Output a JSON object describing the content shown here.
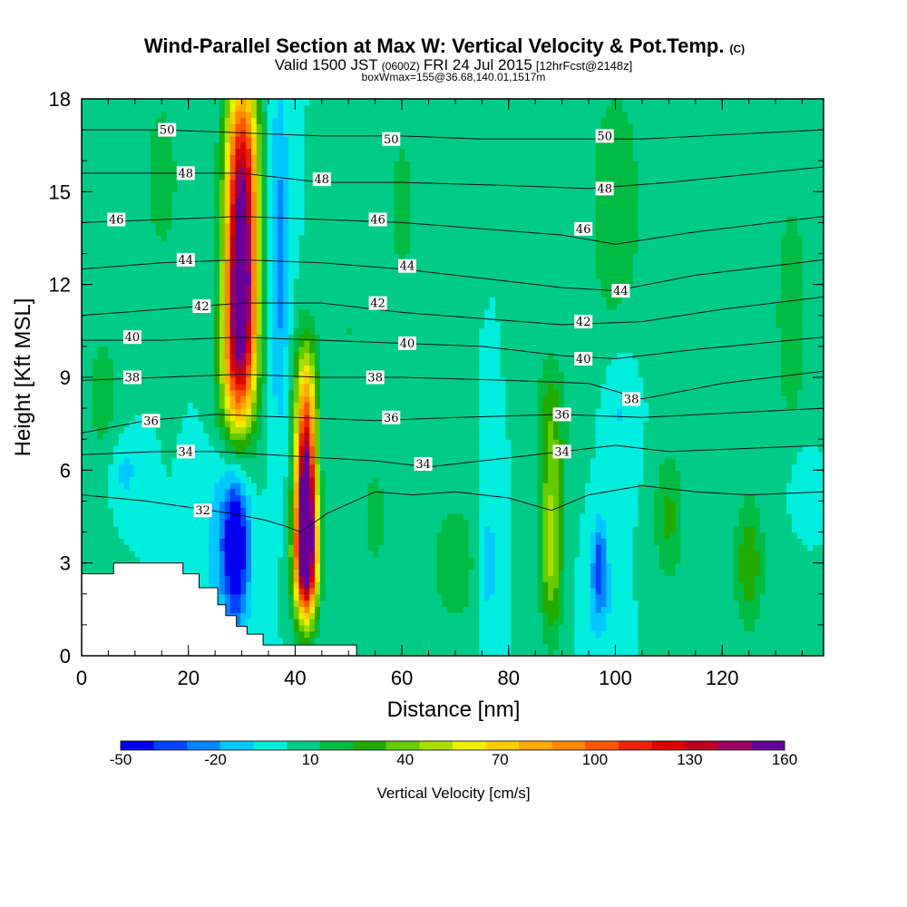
{
  "chart_data": {
    "type": "heatmap",
    "title": "Wind-Parallel Section at Max W: Vertical Velocity & Pot.Temp.",
    "title_mark": "(C)",
    "subtitle_parts": [
      "Valid 1500 JST",
      "(0600Z)",
      "FRI 24 Jul 2015",
      "[12hrFcst@2148z]"
    ],
    "subtitle2": "boxWmax=155@36.68,140.01,1517m",
    "xlabel": "Distance [nm]",
    "ylabel": "Height [Kft MSL]",
    "xlim": [
      0,
      139
    ],
    "ylim": [
      0,
      18
    ],
    "x_ticks": [
      "0",
      "20",
      "40",
      "60",
      "80",
      "100",
      "120"
    ],
    "y_ticks": [
      "0",
      "3",
      "6",
      "9",
      "12",
      "15",
      "18"
    ],
    "grid": false,
    "colorbar": {
      "label": "Vertical Velocity [cm/s]",
      "min": -50,
      "max": 160,
      "step": 10,
      "tick_labels": [
        "-50",
        "-20",
        "10",
        "40",
        "70",
        "100",
        "130",
        "160"
      ],
      "colors": [
        "#0000ee",
        "#0044ff",
        "#0088ff",
        "#00c8ff",
        "#00eedd",
        "#00cc88",
        "#00bb44",
        "#22aa00",
        "#66cc00",
        "#aadd00",
        "#eeee00",
        "#ffcc00",
        "#ffaa00",
        "#ff8800",
        "#ff5500",
        "#ee2200",
        "#dd0000",
        "#bb0022",
        "#990066",
        "#660099"
      ],
      "placement": "bottom"
    },
    "background_value": 0,
    "velocity_features": [
      {
        "x": 30,
        "y": 16.5,
        "sx": 2.2,
        "sy": 2.0,
        "value": 70
      },
      {
        "x": 30,
        "y": 13.0,
        "sx": 2.0,
        "sy": 2.5,
        "value": 120
      },
      {
        "x": 29.5,
        "y": 10.5,
        "sx": 2.2,
        "sy": 2.0,
        "value": 80
      },
      {
        "x": 29,
        "y": 8.5,
        "sx": 2.5,
        "sy": 1.5,
        "value": 30
      },
      {
        "x": 42,
        "y": 8.5,
        "sx": 1.6,
        "sy": 1.5,
        "value": 45
      },
      {
        "x": 42,
        "y": 5.0,
        "sx": 1.3,
        "sy": 2.0,
        "value": 160
      },
      {
        "x": 42,
        "y": 3.0,
        "sx": 1.6,
        "sy": 1.3,
        "value": 90
      },
      {
        "x": 29,
        "y": 3.5,
        "sx": 1.7,
        "sy": 1.7,
        "value": -55
      },
      {
        "x": 26,
        "y": 3.8,
        "sx": 2.5,
        "sy": 2.0,
        "value": -15
      },
      {
        "x": 37,
        "y": 13.0,
        "sx": 1.3,
        "sy": 4.0,
        "value": -25
      },
      {
        "x": 88,
        "y": 3.5,
        "sx": 1.5,
        "sy": 2.0,
        "value": 45
      },
      {
        "x": 88,
        "y": 7.5,
        "sx": 2.0,
        "sy": 1.6,
        "value": 25
      },
      {
        "x": 70,
        "y": 3.0,
        "sx": 3.5,
        "sy": 1.5,
        "value": 18
      },
      {
        "x": 76,
        "y": 3.0,
        "sx": 1.5,
        "sy": 1.5,
        "value": -18
      },
      {
        "x": 97,
        "y": 3.0,
        "sx": 1.0,
        "sy": 1.0,
        "value": -35
      },
      {
        "x": 97,
        "y": 1.5,
        "sx": 2.0,
        "sy": 1.0,
        "value": -12
      },
      {
        "x": 110,
        "y": 4.5,
        "sx": 2.0,
        "sy": 1.6,
        "value": 22
      },
      {
        "x": 125,
        "y": 3.0,
        "sx": 2.0,
        "sy": 1.5,
        "value": 28
      },
      {
        "x": 101,
        "y": 8.0,
        "sx": 2.0,
        "sy": 1.5,
        "value": -12
      },
      {
        "x": 100,
        "y": 14.5,
        "sx": 3.5,
        "sy": 3.0,
        "value": 20
      },
      {
        "x": 15,
        "y": 15.5,
        "sx": 3.0,
        "sy": 2.5,
        "value": 14
      },
      {
        "x": 60,
        "y": 14.5,
        "sx": 3.0,
        "sy": 3.0,
        "value": 12
      },
      {
        "x": 50,
        "y": 10.5,
        "sx": 2.5,
        "sy": 3.0,
        "value": 10
      },
      {
        "x": 4,
        "y": 8.5,
        "sx": 2.5,
        "sy": 2.0,
        "value": 14
      },
      {
        "x": 133,
        "y": 11.0,
        "sx": 3.0,
        "sy": 4.0,
        "value": 14
      },
      {
        "x": 55,
        "y": 4.5,
        "sx": 2.0,
        "sy": 1.5,
        "value": 14
      },
      {
        "x": 8,
        "y": 6.0,
        "sx": 2.0,
        "sy": 0.8,
        "value": -14
      },
      {
        "x": 135,
        "y": 5.5,
        "sx": 2.0,
        "sy": 1.0,
        "value": -12
      }
    ],
    "terrain": [
      [
        0,
        2.65
      ],
      [
        6,
        2.65
      ],
      [
        6,
        3.0
      ],
      [
        19,
        3.0
      ],
      [
        19,
        2.65
      ],
      [
        22,
        2.65
      ],
      [
        22,
        2.2
      ],
      [
        25.5,
        2.2
      ],
      [
        25.5,
        1.65
      ],
      [
        27,
        1.65
      ],
      [
        27,
        1.3
      ],
      [
        29,
        1.3
      ],
      [
        29,
        0.95
      ],
      [
        31,
        0.95
      ],
      [
        31,
        0.7
      ],
      [
        34,
        0.7
      ],
      [
        34,
        0.35
      ],
      [
        51.5,
        0.35
      ],
      [
        51.5,
        0.0
      ],
      [
        139,
        0.0
      ]
    ],
    "isentropes": [
      {
        "label": "32",
        "pts": [
          [
            0,
            5.2
          ],
          [
            12,
            5.0
          ],
          [
            20,
            4.8
          ],
          [
            28,
            4.6
          ],
          [
            34,
            4.4
          ],
          [
            38,
            4.2
          ],
          [
            41,
            4.0
          ],
          [
            46,
            4.6
          ],
          [
            55,
            5.3
          ],
          [
            62,
            5.2
          ],
          [
            70,
            5.3
          ],
          [
            80,
            5.1
          ],
          [
            88,
            4.7
          ],
          [
            95,
            5.2
          ],
          [
            105,
            5.5
          ],
          [
            115,
            5.3
          ],
          [
            125,
            5.2
          ],
          [
            139,
            5.3
          ]
        ],
        "labels_at": [
          [
            22.7,
            4.7
          ]
        ]
      },
      {
        "label": "34",
        "pts": [
          [
            0,
            6.5
          ],
          [
            14,
            6.6
          ],
          [
            25,
            6.6
          ],
          [
            35,
            6.5
          ],
          [
            45,
            6.4
          ],
          [
            55,
            6.3
          ],
          [
            65,
            6.1
          ],
          [
            80,
            6.4
          ],
          [
            90,
            6.6
          ],
          [
            100,
            6.8
          ],
          [
            110,
            6.6
          ],
          [
            139,
            6.8
          ]
        ],
        "labels_at": [
          [
            19.5,
            6.6
          ],
          [
            64,
            6.2
          ],
          [
            90,
            6.6
          ]
        ]
      },
      {
        "label": "36",
        "pts": [
          [
            0,
            7.2
          ],
          [
            12,
            7.6
          ],
          [
            25,
            7.8
          ],
          [
            40,
            7.7
          ],
          [
            55,
            7.6
          ],
          [
            70,
            7.7
          ],
          [
            90,
            7.8
          ],
          [
            105,
            7.7
          ],
          [
            139,
            8.0
          ]
        ],
        "labels_at": [
          [
            13,
            7.6
          ],
          [
            58,
            7.7
          ],
          [
            90,
            7.8
          ]
        ]
      },
      {
        "label": "38",
        "pts": [
          [
            0,
            8.9
          ],
          [
            15,
            9.0
          ],
          [
            30,
            9.1
          ],
          [
            45,
            9.0
          ],
          [
            60,
            9.0
          ],
          [
            80,
            8.9
          ],
          [
            95,
            8.8
          ],
          [
            105,
            8.3
          ],
          [
            120,
            8.8
          ],
          [
            139,
            9.2
          ]
        ],
        "labels_at": [
          [
            9.5,
            9.0
          ],
          [
            55,
            9.0
          ],
          [
            103,
            8.3
          ]
        ]
      },
      {
        "label": "40",
        "pts": [
          [
            0,
            10.2
          ],
          [
            15,
            10.2
          ],
          [
            30,
            10.3
          ],
          [
            45,
            10.2
          ],
          [
            60,
            10.1
          ],
          [
            75,
            10.0
          ],
          [
            90,
            9.7
          ],
          [
            100,
            9.6
          ],
          [
            115,
            9.9
          ],
          [
            139,
            10.3
          ]
        ],
        "labels_at": [
          [
            9.5,
            10.3
          ],
          [
            61,
            10.1
          ],
          [
            94,
            9.6
          ]
        ]
      },
      {
        "label": "42",
        "pts": [
          [
            0,
            11.0
          ],
          [
            15,
            11.2
          ],
          [
            30,
            11.4
          ],
          [
            45,
            11.4
          ],
          [
            60,
            11.1
          ],
          [
            75,
            10.9
          ],
          [
            90,
            10.7
          ],
          [
            105,
            10.8
          ],
          [
            120,
            11.2
          ],
          [
            139,
            11.6
          ]
        ],
        "labels_at": [
          [
            22.5,
            11.3
          ],
          [
            55.5,
            11.4
          ],
          [
            94,
            10.8
          ]
        ]
      },
      {
        "label": "44",
        "pts": [
          [
            0,
            12.5
          ],
          [
            15,
            12.7
          ],
          [
            30,
            12.8
          ],
          [
            45,
            12.7
          ],
          [
            60,
            12.5
          ],
          [
            75,
            12.2
          ],
          [
            90,
            11.9
          ],
          [
            100,
            11.8
          ],
          [
            115,
            12.3
          ],
          [
            139,
            12.8
          ]
        ],
        "labels_at": [
          [
            19.5,
            12.8
          ],
          [
            61,
            12.6
          ],
          [
            101,
            11.8
          ]
        ]
      },
      {
        "label": "46",
        "pts": [
          [
            0,
            14.0
          ],
          [
            15,
            14.1
          ],
          [
            30,
            14.2
          ],
          [
            45,
            14.1
          ],
          [
            60,
            14.0
          ],
          [
            75,
            13.8
          ],
          [
            90,
            13.6
          ],
          [
            100,
            13.3
          ],
          [
            115,
            13.7
          ],
          [
            139,
            14.2
          ]
        ],
        "labels_at": [
          [
            6.5,
            14.1
          ],
          [
            55.5,
            14.1
          ],
          [
            94,
            13.8
          ]
        ]
      },
      {
        "label": "48",
        "pts": [
          [
            0,
            15.6
          ],
          [
            15,
            15.6
          ],
          [
            30,
            15.6
          ],
          [
            45,
            15.3
          ],
          [
            60,
            15.3
          ],
          [
            80,
            15.2
          ],
          [
            95,
            15.1
          ],
          [
            110,
            15.3
          ],
          [
            139,
            15.8
          ]
        ],
        "labels_at": [
          [
            19.5,
            15.6
          ],
          [
            45,
            15.4
          ],
          [
            98,
            15.1
          ]
        ]
      },
      {
        "label": "50",
        "pts": [
          [
            0,
            17.0
          ],
          [
            15,
            17.0
          ],
          [
            30,
            16.9
          ],
          [
            45,
            16.8
          ],
          [
            60,
            16.8
          ],
          [
            75,
            16.7
          ],
          [
            90,
            16.7
          ],
          [
            105,
            16.7
          ],
          [
            139,
            17.0
          ]
        ],
        "labels_at": [
          [
            16,
            17.0
          ],
          [
            58,
            16.7
          ],
          [
            98,
            16.8
          ]
        ]
      }
    ]
  }
}
